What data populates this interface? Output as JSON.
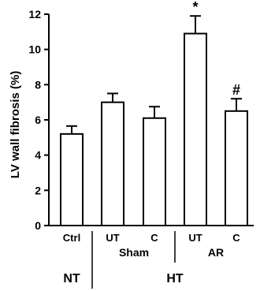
{
  "chart_data": {
    "type": "bar",
    "ylabel": "LV wall fibrosis (%)",
    "ylim": [
      0,
      12
    ],
    "yticks": [
      0,
      2,
      4,
      6,
      8,
      10,
      12
    ],
    "grid": false,
    "bar_fill": "#ffffff",
    "bar_stroke": "#000000",
    "categories": [
      "Ctrl",
      "UT",
      "C",
      "UT",
      "C"
    ],
    "values": [
      5.2,
      7.0,
      6.1,
      10.9,
      6.5
    ],
    "error_bars": [
      0.45,
      0.5,
      0.65,
      1.0,
      0.7
    ],
    "annotations": [
      "",
      "",
      "",
      "*",
      "#"
    ],
    "groups_level1": [
      {
        "label": "Sham",
        "categories": [
          1,
          2
        ]
      },
      {
        "label": "AR",
        "categories": [
          3,
          4
        ]
      }
    ],
    "groups_level2": [
      {
        "label": "NT",
        "categories": [
          0
        ]
      },
      {
        "label": "HT",
        "categories": [
          1,
          2,
          3,
          4
        ]
      }
    ]
  }
}
